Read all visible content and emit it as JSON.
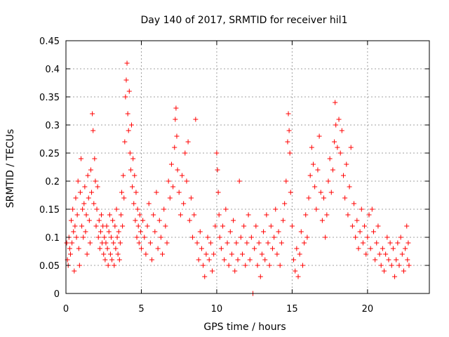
{
  "chart_data": {
    "type": "scatter",
    "title": "Day 140 of 2017, SRMTID for receiver hil1",
    "xlabel": "GPS time / hours",
    "ylabel": "SRMTID / TECUs",
    "xlim": [
      0,
      24.1
    ],
    "ylim": [
      0,
      0.45
    ],
    "x_ticks": [
      0,
      5,
      10,
      15,
      20
    ],
    "y_ticks": [
      0,
      0.05,
      0.1,
      0.15,
      0.2,
      0.25,
      0.3,
      0.35,
      0.4,
      0.45
    ],
    "x_tick_labels": [
      "0",
      "5",
      "10",
      "15",
      "20"
    ],
    "y_tick_labels": [
      "0",
      "0.05",
      "0.1",
      "0.15",
      "0.2",
      "0.25",
      "0.3",
      "0.35",
      "0.4",
      "0.45"
    ],
    "grid": true,
    "marker": "+",
    "color": "#ff0000",
    "series": [
      {
        "name": "SRMTID",
        "points": [
          [
            0.05,
            0.09
          ],
          [
            0.1,
            0.06
          ],
          [
            0.15,
            0.05
          ],
          [
            0.2,
            0.1
          ],
          [
            0.25,
            0.08
          ],
          [
            0.3,
            0.07
          ],
          [
            0.35,
            0.13
          ],
          [
            0.4,
            0.09
          ],
          [
            0.45,
            0.15
          ],
          [
            0.5,
            0.11
          ],
          [
            0.55,
            0.04
          ],
          [
            0.6,
            0.12
          ],
          [
            0.65,
            0.17
          ],
          [
            0.7,
            0.1
          ],
          [
            0.75,
            0.14
          ],
          [
            0.8,
            0.2
          ],
          [
            0.85,
            0.08
          ],
          [
            0.9,
            0.05
          ],
          [
            0.95,
            0.18
          ],
          [
            1.0,
            0.24
          ],
          [
            1.05,
            0.12
          ],
          [
            1.1,
            0.15
          ],
          [
            1.15,
            0.1
          ],
          [
            1.2,
            0.16
          ],
          [
            1.25,
            0.19
          ],
          [
            1.3,
            0.11
          ],
          [
            1.35,
            0.14
          ],
          [
            1.4,
            0.07
          ],
          [
            1.45,
            0.21
          ],
          [
            1.5,
            0.17
          ],
          [
            1.55,
            0.13
          ],
          [
            1.6,
            0.09
          ],
          [
            1.65,
            0.22
          ],
          [
            1.7,
            0.18
          ],
          [
            1.75,
            0.32
          ],
          [
            1.8,
            0.29
          ],
          [
            1.85,
            0.16
          ],
          [
            1.9,
            0.24
          ],
          [
            1.95,
            0.2
          ],
          [
            2.0,
            0.12
          ],
          [
            2.05,
            0.15
          ],
          [
            2.1,
            0.19
          ],
          [
            2.15,
            0.1
          ],
          [
            2.2,
            0.13
          ],
          [
            2.25,
            0.08
          ],
          [
            2.3,
            0.11
          ],
          [
            2.35,
            0.14
          ],
          [
            2.4,
            0.09
          ],
          [
            2.45,
            0.12
          ],
          [
            2.5,
            0.07
          ],
          [
            2.55,
            0.1
          ],
          [
            2.6,
            0.06
          ],
          [
            2.65,
            0.09
          ],
          [
            2.7,
            0.12
          ],
          [
            2.75,
            0.08
          ],
          [
            2.8,
            0.05
          ],
          [
            2.85,
            0.11
          ],
          [
            2.9,
            0.14
          ],
          [
            2.95,
            0.07
          ],
          [
            3.0,
            0.1
          ],
          [
            3.05,
            0.06
          ],
          [
            3.1,
            0.13
          ],
          [
            3.15,
            0.09
          ],
          [
            3.2,
            0.05
          ],
          [
            3.25,
            0.12
          ],
          [
            3.3,
            0.08
          ],
          [
            3.35,
            0.15
          ],
          [
            3.4,
            0.1
          ],
          [
            3.45,
            0.07
          ],
          [
            3.5,
            0.11
          ],
          [
            3.55,
            0.06
          ],
          [
            3.6,
            0.09
          ],
          [
            3.65,
            0.14
          ],
          [
            3.7,
            0.18
          ],
          [
            3.75,
            0.12
          ],
          [
            3.8,
            0.21
          ],
          [
            3.85,
            0.17
          ],
          [
            3.9,
            0.27
          ],
          [
            3.95,
            0.35
          ],
          [
            4.0,
            0.38
          ],
          [
            4.05,
            0.41
          ],
          [
            4.1,
            0.32
          ],
          [
            4.15,
            0.29
          ],
          [
            4.2,
            0.36
          ],
          [
            4.25,
            0.25
          ],
          [
            4.3,
            0.22
          ],
          [
            4.35,
            0.3
          ],
          [
            4.4,
            0.19
          ],
          [
            4.45,
            0.24
          ],
          [
            4.5,
            0.16
          ],
          [
            4.55,
            0.21
          ],
          [
            4.6,
            0.13
          ],
          [
            4.65,
            0.18
          ],
          [
            4.7,
            0.1
          ],
          [
            4.75,
            0.15
          ],
          [
            4.8,
            0.12
          ],
          [
            4.85,
            0.09
          ],
          [
            4.9,
            0.14
          ],
          [
            4.95,
            0.11
          ],
          [
            5.0,
            0.08
          ],
          [
            5.1,
            0.13
          ],
          [
            5.2,
            0.1
          ],
          [
            5.3,
            0.07
          ],
          [
            5.4,
            0.12
          ],
          [
            5.5,
            0.16
          ],
          [
            5.6,
            0.09
          ],
          [
            5.7,
            0.06
          ],
          [
            5.8,
            0.14
          ],
          [
            5.9,
            0.11
          ],
          [
            6.0,
            0.18
          ],
          [
            6.1,
            0.08
          ],
          [
            6.2,
            0.13
          ],
          [
            6.3,
            0.1
          ],
          [
            6.4,
            0.07
          ],
          [
            6.5,
            0.15
          ],
          [
            6.6,
            0.12
          ],
          [
            6.7,
            0.09
          ],
          [
            6.8,
            0.2
          ],
          [
            6.9,
            0.17
          ],
          [
            7.0,
            0.23
          ],
          [
            7.1,
            0.19
          ],
          [
            7.2,
            0.26
          ],
          [
            7.25,
            0.31
          ],
          [
            7.3,
            0.33
          ],
          [
            7.35,
            0.28
          ],
          [
            7.4,
            0.22
          ],
          [
            7.5,
            0.18
          ],
          [
            7.6,
            0.14
          ],
          [
            7.7,
            0.21
          ],
          [
            7.8,
            0.16
          ],
          [
            7.9,
            0.25
          ],
          [
            8.0,
            0.2
          ],
          [
            8.1,
            0.27
          ],
          [
            8.2,
            0.13
          ],
          [
            8.3,
            0.17
          ],
          [
            8.4,
            0.1
          ],
          [
            8.5,
            0.14
          ],
          [
            8.6,
            0.31
          ],
          [
            8.7,
            0.09
          ],
          [
            8.8,
            0.06
          ],
          [
            8.9,
            0.11
          ],
          [
            9.0,
            0.08
          ],
          [
            9.1,
            0.05
          ],
          [
            9.2,
            0.03
          ],
          [
            9.3,
            0.07
          ],
          [
            9.4,
            0.1
          ],
          [
            9.5,
            0.06
          ],
          [
            9.6,
            0.09
          ],
          [
            9.7,
            0.04
          ],
          [
            9.8,
            0.07
          ],
          [
            9.9,
            0.12
          ],
          [
            10.0,
            0.25
          ],
          [
            10.05,
            0.22
          ],
          [
            10.1,
            0.18
          ],
          [
            10.15,
            0.14
          ],
          [
            10.2,
            0.1
          ],
          [
            10.3,
            0.08
          ],
          [
            10.4,
            0.12
          ],
          [
            10.5,
            0.06
          ],
          [
            10.6,
            0.15
          ],
          [
            10.7,
            0.09
          ],
          [
            10.8,
            0.05
          ],
          [
            10.9,
            0.11
          ],
          [
            11.0,
            0.07
          ],
          [
            11.1,
            0.13
          ],
          [
            11.2,
            0.04
          ],
          [
            11.3,
            0.09
          ],
          [
            11.4,
            0.06
          ],
          [
            11.5,
            0.2
          ],
          [
            11.6,
            0.1
          ],
          [
            11.7,
            0.07
          ],
          [
            11.8,
            0.12
          ],
          [
            11.9,
            0.05
          ],
          [
            12.0,
            0.09
          ],
          [
            12.1,
            0.14
          ],
          [
            12.2,
            0.06
          ],
          [
            12.3,
            0.1
          ],
          [
            12.4,
            0.0
          ],
          [
            12.5,
            0.08
          ],
          [
            12.6,
            0.12
          ],
          [
            12.7,
            0.05
          ],
          [
            12.8,
            0.09
          ],
          [
            12.9,
            0.03
          ],
          [
            13.0,
            0.07
          ],
          [
            13.1,
            0.11
          ],
          [
            13.2,
            0.06
          ],
          [
            13.3,
            0.14
          ],
          [
            13.4,
            0.09
          ],
          [
            13.5,
            0.05
          ],
          [
            13.6,
            0.12
          ],
          [
            13.7,
            0.08
          ],
          [
            13.8,
            0.1
          ],
          [
            13.9,
            0.15
          ],
          [
            14.0,
            0.07
          ],
          [
            14.1,
            0.11
          ],
          [
            14.2,
            0.05
          ],
          [
            14.3,
            0.09
          ],
          [
            14.4,
            0.13
          ],
          [
            14.5,
            0.16
          ],
          [
            14.6,
            0.2
          ],
          [
            14.7,
            0.27
          ],
          [
            14.75,
            0.32
          ],
          [
            14.8,
            0.29
          ],
          [
            14.85,
            0.25
          ],
          [
            14.9,
            0.18
          ],
          [
            15.0,
            0.12
          ],
          [
            15.1,
            0.06
          ],
          [
            15.2,
            0.04
          ],
          [
            15.3,
            0.08
          ],
          [
            15.4,
            0.03
          ],
          [
            15.5,
            0.07
          ],
          [
            15.6,
            0.11
          ],
          [
            15.7,
            0.05
          ],
          [
            15.8,
            0.09
          ],
          [
            15.9,
            0.14
          ],
          [
            16.0,
            0.1
          ],
          [
            16.1,
            0.17
          ],
          [
            16.2,
            0.21
          ],
          [
            16.3,
            0.26
          ],
          [
            16.4,
            0.23
          ],
          [
            16.5,
            0.19
          ],
          [
            16.6,
            0.15
          ],
          [
            16.7,
            0.22
          ],
          [
            16.8,
            0.28
          ],
          [
            16.9,
            0.18
          ],
          [
            17.0,
            0.13
          ],
          [
            17.1,
            0.17
          ],
          [
            17.2,
            0.1
          ],
          [
            17.3,
            0.14
          ],
          [
            17.4,
            0.2
          ],
          [
            17.5,
            0.24
          ],
          [
            17.6,
            0.18
          ],
          [
            17.7,
            0.22
          ],
          [
            17.8,
            0.27
          ],
          [
            17.85,
            0.34
          ],
          [
            17.9,
            0.3
          ],
          [
            18.0,
            0.26
          ],
          [
            18.1,
            0.31
          ],
          [
            18.2,
            0.25
          ],
          [
            18.3,
            0.29
          ],
          [
            18.4,
            0.21
          ],
          [
            18.5,
            0.17
          ],
          [
            18.6,
            0.23
          ],
          [
            18.7,
            0.14
          ],
          [
            18.8,
            0.19
          ],
          [
            18.9,
            0.26
          ],
          [
            19.0,
            0.12
          ],
          [
            19.1,
            0.16
          ],
          [
            19.2,
            0.1
          ],
          [
            19.3,
            0.13
          ],
          [
            19.4,
            0.08
          ],
          [
            19.5,
            0.11
          ],
          [
            19.6,
            0.15
          ],
          [
            19.7,
            0.09
          ],
          [
            19.8,
            0.12
          ],
          [
            19.9,
            0.07
          ],
          [
            20.0,
            0.1
          ],
          [
            20.1,
            0.14
          ],
          [
            20.2,
            0.08
          ],
          [
            20.3,
            0.15
          ],
          [
            20.4,
            0.11
          ],
          [
            20.5,
            0.06
          ],
          [
            20.6,
            0.09
          ],
          [
            20.7,
            0.12
          ],
          [
            20.8,
            0.07
          ],
          [
            20.9,
            0.05
          ],
          [
            21.0,
            0.08
          ],
          [
            21.1,
            0.04
          ],
          [
            21.2,
            0.07
          ],
          [
            21.3,
            0.1
          ],
          [
            21.4,
            0.06
          ],
          [
            21.5,
            0.09
          ],
          [
            21.6,
            0.05
          ],
          [
            21.7,
            0.08
          ],
          [
            21.8,
            0.03
          ],
          [
            21.9,
            0.06
          ],
          [
            22.0,
            0.09
          ],
          [
            22.1,
            0.05
          ],
          [
            22.2,
            0.1
          ],
          [
            22.3,
            0.07
          ],
          [
            22.4,
            0.04
          ],
          [
            22.5,
            0.08
          ],
          [
            22.6,
            0.12
          ],
          [
            22.65,
            0.06
          ],
          [
            22.7,
            0.09
          ],
          [
            22.75,
            0.05
          ]
        ]
      }
    ]
  }
}
